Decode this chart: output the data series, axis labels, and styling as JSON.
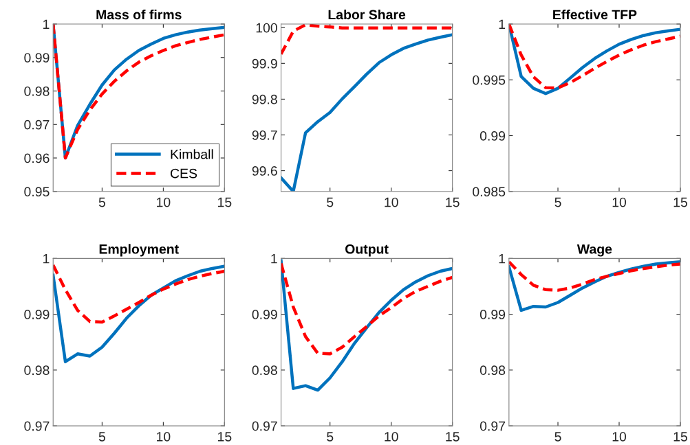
{
  "chart_data": [
    {
      "type": "line",
      "title": "Mass of firms",
      "x": [
        1,
        2,
        3,
        4,
        5,
        6,
        7,
        8,
        9,
        10,
        11,
        12,
        13,
        14,
        15
      ],
      "xlim": [
        1,
        15
      ],
      "xticks": [
        5,
        10,
        15
      ],
      "ylim": [
        0.95,
        1
      ],
      "yticks": [
        0.95,
        0.96,
        0.97,
        0.98,
        0.99,
        1
      ],
      "legend": "bottom right",
      "series": [
        {
          "name": "Kimball",
          "color": "#0072bd",
          "line_style": "solid",
          "values": [
            1.0,
            0.96,
            0.9697,
            0.976,
            0.9818,
            0.9863,
            0.9895,
            0.9921,
            0.994,
            0.9957,
            0.9968,
            0.9976,
            0.9982,
            0.9986,
            0.999
          ]
        },
        {
          "name": "CES",
          "color": "#ff0000",
          "line_style": "dashed",
          "values": [
            1.0,
            0.96,
            0.9685,
            0.9743,
            0.9791,
            0.9829,
            0.986,
            0.9886,
            0.9905,
            0.9921,
            0.9935,
            0.9945,
            0.9954,
            0.9961,
            0.9968
          ]
        }
      ]
    },
    {
      "type": "line",
      "title": "Labor Share",
      "x": [
        1,
        2,
        3,
        4,
        5,
        6,
        7,
        8,
        9,
        10,
        11,
        12,
        13,
        14,
        15
      ],
      "xlim": [
        1,
        15
      ],
      "xticks": [
        5,
        10,
        15
      ],
      "ylim": [
        99.542,
        100.01
      ],
      "yticks": [
        99.6,
        99.7,
        99.8,
        99.9,
        100
      ],
      "series": [
        {
          "color": "#0072bd",
          "line_style": "solid",
          "values": [
            99.58,
            99.542,
            99.706,
            99.737,
            99.763,
            99.801,
            99.835,
            99.87,
            99.902,
            99.924,
            99.942,
            99.954,
            99.965,
            99.973,
            99.98
          ]
        },
        {
          "color": "#ff0000",
          "line_style": "dashed",
          "values": [
            99.926,
            99.99,
            100.008,
            100.004,
            100.002,
            99.999,
            99.999,
            99.999,
            99.999,
            99.999,
            99.999,
            99.999,
            99.999,
            99.999,
            99.999
          ]
        }
      ]
    },
    {
      "type": "line",
      "title": "Effective TFP",
      "x": [
        1,
        2,
        3,
        4,
        5,
        6,
        7,
        8,
        9,
        10,
        11,
        12,
        13,
        14,
        15
      ],
      "xlim": [
        1,
        15
      ],
      "xticks": [
        5,
        10,
        15
      ],
      "ylim": [
        0.985,
        1
      ],
      "yticks": [
        0.985,
        0.99,
        0.995,
        1
      ],
      "series": [
        {
          "color": "#0072bd",
          "line_style": "solid",
          "values": [
            1.0,
            0.9953,
            0.99424,
            0.99377,
            0.99424,
            0.99516,
            0.99609,
            0.99691,
            0.99759,
            0.99819,
            0.99862,
            0.99897,
            0.99922,
            0.99938,
            0.99953
          ]
        },
        {
          "color": "#ff0000",
          "line_style": "dashed",
          "values": [
            1.0,
            0.99722,
            0.99527,
            0.9943,
            0.99428,
            0.99475,
            0.99537,
            0.99603,
            0.99665,
            0.99722,
            0.9977,
            0.99811,
            0.99842,
            0.99866,
            0.99891
          ]
        }
      ]
    },
    {
      "type": "line",
      "title": "Employment",
      "x": [
        1,
        2,
        3,
        4,
        5,
        6,
        7,
        8,
        9,
        10,
        11,
        12,
        13,
        14,
        15
      ],
      "xlim": [
        1,
        15
      ],
      "xticks": [
        5,
        10,
        15
      ],
      "ylim": [
        0.97,
        1
      ],
      "yticks": [
        0.97,
        0.98,
        0.99,
        1
      ],
      "series": [
        {
          "color": "#0072bd",
          "line_style": "solid",
          "values": [
            0.997,
            0.9815,
            0.9829,
            0.9825,
            0.9841,
            0.9866,
            0.9893,
            0.9915,
            0.9934,
            0.9947,
            0.996,
            0.9969,
            0.9977,
            0.9982,
            0.9986
          ]
        },
        {
          "color": "#ff0000",
          "line_style": "dashed",
          "values": [
            0.9988,
            0.9944,
            0.9907,
            0.9887,
            0.9886,
            0.9897,
            0.9909,
            0.9921,
            0.9934,
            0.9945,
            0.9954,
            0.9962,
            0.9968,
            0.9973,
            0.9977
          ]
        }
      ]
    },
    {
      "type": "line",
      "title": "Output",
      "x": [
        1,
        2,
        3,
        4,
        5,
        6,
        7,
        8,
        9,
        10,
        11,
        12,
        13,
        14,
        15
      ],
      "xlim": [
        1,
        15
      ],
      "xticks": [
        5,
        10,
        15
      ],
      "ylim": [
        0.97,
        1
      ],
      "yticks": [
        0.97,
        0.98,
        0.99,
        1
      ],
      "series": [
        {
          "color": "#0072bd",
          "line_style": "solid",
          "values": [
            0.9996,
            0.9767,
            0.9772,
            0.9764,
            0.9786,
            0.9815,
            0.9848,
            0.9876,
            0.9903,
            0.9925,
            0.9944,
            0.9958,
            0.9969,
            0.9977,
            0.9982
          ]
        },
        {
          "color": "#ff0000",
          "line_style": "dashed",
          "values": [
            0.9991,
            0.9913,
            0.986,
            0.983,
            0.9829,
            0.9841,
            0.986,
            0.9878,
            0.9897,
            0.9912,
            0.9928,
            0.9941,
            0.995,
            0.9959,
            0.9966
          ]
        }
      ]
    },
    {
      "type": "line",
      "title": "Wage",
      "x": [
        1,
        2,
        3,
        4,
        5,
        6,
        7,
        8,
        9,
        10,
        11,
        12,
        13,
        14,
        15
      ],
      "xlim": [
        1,
        15
      ],
      "xticks": [
        5,
        10,
        15
      ],
      "ylim": [
        0.97,
        1
      ],
      "yticks": [
        0.97,
        0.98,
        0.99,
        1
      ],
      "series": [
        {
          "color": "#0072bd",
          "line_style": "solid",
          "values": [
            0.9985,
            0.9907,
            0.9914,
            0.9913,
            0.9921,
            0.9934,
            0.9947,
            0.9958,
            0.9968,
            0.9975,
            0.9981,
            0.9986,
            0.999,
            0.9992,
            0.9994
          ]
        },
        {
          "color": "#ff0000",
          "line_style": "dashed",
          "values": [
            0.9994,
            0.9971,
            0.9952,
            0.9944,
            0.9943,
            0.9947,
            0.9954,
            0.9962,
            0.9968,
            0.9973,
            0.9978,
            0.9982,
            0.9985,
            0.9988,
            0.999
          ]
        }
      ]
    }
  ]
}
